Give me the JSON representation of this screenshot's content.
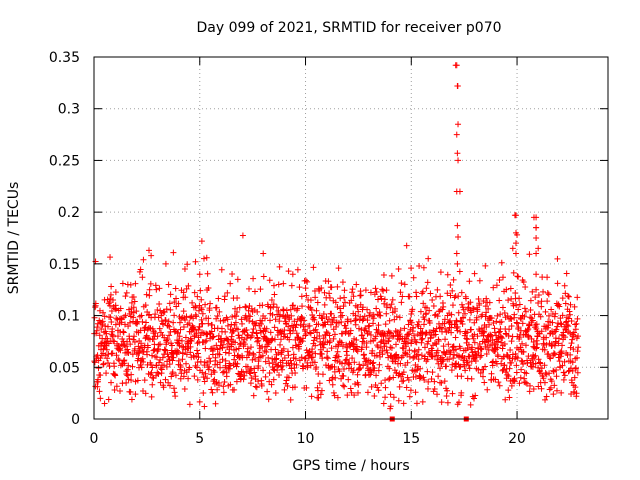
{
  "chart_data": {
    "type": "scatter",
    "title": "Day 099 of 2021, SRMTID for receiver p070",
    "xlabel": "GPS time / hours",
    "ylabel": "SRMTID / TECUs",
    "xlim": [
      0,
      24.3
    ],
    "ylim": [
      0,
      0.35
    ],
    "xticks": [
      0,
      5,
      10,
      15,
      20
    ],
    "xtick_labels": [
      "0",
      "5",
      "10",
      "15",
      "20"
    ],
    "yticks": [
      0,
      0.05,
      0.1,
      0.15,
      0.2,
      0.25,
      0.3,
      0.35
    ],
    "ytick_labels": [
      "0",
      "0.05",
      "0.1",
      "0.15",
      "0.2",
      "0.25",
      "0.3",
      "0.35"
    ],
    "grid": true,
    "marker": "+",
    "color": "#ff0000",
    "series": [
      {
        "name": "SRMTID",
        "time_range_hours": [
          0,
          22.9
        ],
        "typical_range": [
          0.03,
          0.12
        ],
        "x": [
          0.3,
          0.5,
          0.8,
          0.9,
          1.6,
          2.6,
          2.7,
          3.4,
          4.3,
          4.8,
          5.0,
          5.1,
          5.2,
          6.8,
          8.0,
          9.2,
          9.4,
          12.4,
          13.7,
          14.0,
          14.4,
          15.8,
          16.4,
          17.1,
          17.2,
          17.3,
          18.5,
          19.8,
          19.9,
          20.0,
          20.8,
          20.9,
          21.0,
          22.8
        ],
        "y": [
          0.02,
          0.015,
          0.12,
          0.115,
          0.13,
          0.163,
          0.158,
          0.15,
          0.145,
          0.152,
          0.14,
          0.172,
          0.155,
          0.135,
          0.16,
          0.143,
          0.14,
          0.13,
          0.015,
          0.01,
          0.145,
          0.155,
          0.142,
          0.342,
          0.322,
          0.22,
          0.148,
          0.165,
          0.197,
          0.178,
          0.195,
          0.185,
          0.165,
          0.022
        ],
        "generated_bulk": {
          "count": 2300,
          "x_min": 0,
          "x_max": 22.9,
          "y_center": 0.072,
          "y_spread": 0.028
        }
      }
    ],
    "zero_marks_x": [
      14.1,
      17.6
    ]
  }
}
